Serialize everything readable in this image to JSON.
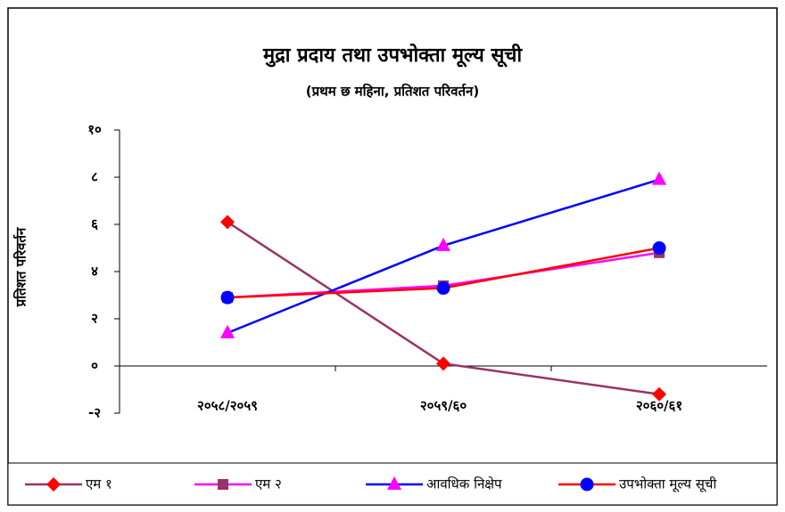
{
  "chart_data": {
    "type": "line",
    "title": "मुद्रा प्रदाय तथा उपभोक्ता मूल्य सूची",
    "subtitle": "(प्रथम छ महिना, प्रतिशत परिवर्तन)",
    "y_label": "प्रतिशत परिवर्तन",
    "categories": [
      "२०५८/२०५९",
      "२०५९/६०",
      "२०६०/६१"
    ],
    "series": [
      {
        "name": "एम १",
        "color": "#993366",
        "marker_color": "#ff0000",
        "marker": "diamond",
        "values": [
          6.1,
          0.1,
          -1.2
        ]
      },
      {
        "name": "एम २",
        "color": "#ff00ff",
        "marker_color": "#993366",
        "marker": "square",
        "values": [
          2.9,
          3.4,
          4.8
        ]
      },
      {
        "name": "आवधिक निक्षेप",
        "color": "#0000ff",
        "marker_color": "#ff00ff",
        "marker": "triangle",
        "values": [
          1.4,
          5.1,
          7.9
        ]
      },
      {
        "name": "उपभोक्ता मूल्य सूची",
        "color": "#ff0000",
        "marker_color": "#0000ff",
        "marker": "circle",
        "values": [
          2.9,
          3.3,
          5.0
        ]
      }
    ],
    "ylim": [
      -2,
      10
    ],
    "yticks": [
      {
        "value": -2,
        "label": "-२"
      },
      {
        "value": 0,
        "label": "०"
      },
      {
        "value": 2,
        "label": "२"
      },
      {
        "value": 4,
        "label": "४"
      },
      {
        "value": 6,
        "label": "६"
      },
      {
        "value": 8,
        "label": "८"
      },
      {
        "value": 10,
        "label": "१०"
      }
    ],
    "legend": "bottom"
  }
}
